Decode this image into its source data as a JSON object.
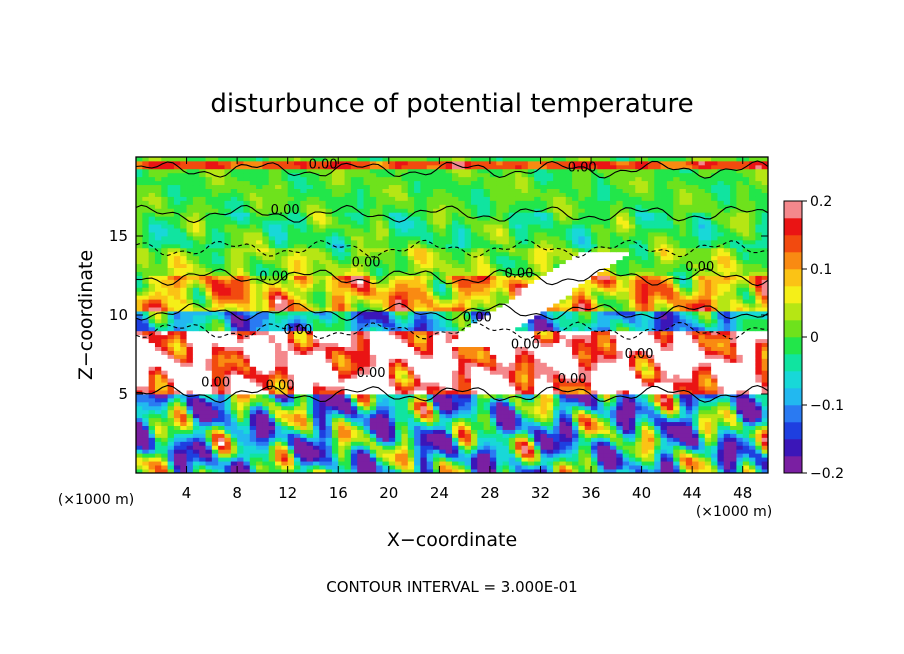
{
  "chart_data": {
    "type": "heatmap",
    "title": "disturbunce of potential temperature",
    "xlabel": "X−coordinate",
    "ylabel": "Z−coordinate",
    "x_unit_label": "(×1000 m)",
    "y_unit_label": "(×1000 m)",
    "xlim": [
      0,
      50
    ],
    "ylim": [
      0,
      20
    ],
    "x_ticks": [
      4,
      8,
      12,
      16,
      20,
      24,
      28,
      32,
      36,
      40,
      44,
      48
    ],
    "y_ticks": [
      5,
      10,
      15
    ],
    "colorbar": {
      "range": [
        -0.2,
        0.2
      ],
      "ticks": [
        0.2,
        0.1,
        0,
        -0.1,
        -0.2
      ],
      "tick_labels": [
        "0.2",
        "0.1",
        "0",
        "−0.1",
        "−0.2"
      ],
      "colors": [
        "#7a1fa2",
        "#3b16b8",
        "#1e3fe0",
        "#2a7af2",
        "#22b8f0",
        "#18d8d8",
        "#10e4a0",
        "#22e64a",
        "#6ee21c",
        "#b6e614",
        "#f5ef18",
        "#fbc315",
        "#f98a12",
        "#f24a0f",
        "#ea1414",
        "#f4888c"
      ]
    },
    "contour_label": "0.00",
    "contour_interval_text": "CONTOUR INTERVAL = 3.000E-01",
    "grid": false,
    "legend": "colorbar-right",
    "bands": [
      {
        "z": [
          19.2,
          19.8
        ],
        "level": 0.14
      },
      {
        "z": [
          16.4,
          19.2
        ],
        "level": 0.0
      },
      {
        "z": [
          14.2,
          16.4
        ],
        "level": -0.01
      },
      {
        "z": [
          12.4,
          14.2
        ],
        "level": 0.02
      },
      {
        "z": [
          10.2,
          12.4
        ],
        "level": 0.08
      },
      {
        "z": [
          9.0,
          10.2
        ],
        "level": -0.08
      },
      {
        "z": [
          5.0,
          9.0
        ],
        "level": 0.2
      },
      {
        "z": [
          0.0,
          5.0
        ],
        "level": -0.06
      }
    ],
    "contour_labels": [
      {
        "x": 14.8,
        "z": 19.6
      },
      {
        "x": 35.3,
        "z": 19.4
      },
      {
        "x": 11.8,
        "z": 16.7
      },
      {
        "x": 10.9,
        "z": 12.5
      },
      {
        "x": 18.2,
        "z": 13.4
      },
      {
        "x": 30.3,
        "z": 12.7
      },
      {
        "x": 44.6,
        "z": 13.1
      },
      {
        "x": 27.0,
        "z": 9.9
      },
      {
        "x": 12.8,
        "z": 9.1
      },
      {
        "x": 30.8,
        "z": 8.2
      },
      {
        "x": 39.8,
        "z": 7.6
      },
      {
        "x": 34.5,
        "z": 6.0
      },
      {
        "x": 6.3,
        "z": 5.8
      },
      {
        "x": 11.4,
        "z": 5.6
      },
      {
        "x": 18.6,
        "z": 6.4
      }
    ]
  }
}
